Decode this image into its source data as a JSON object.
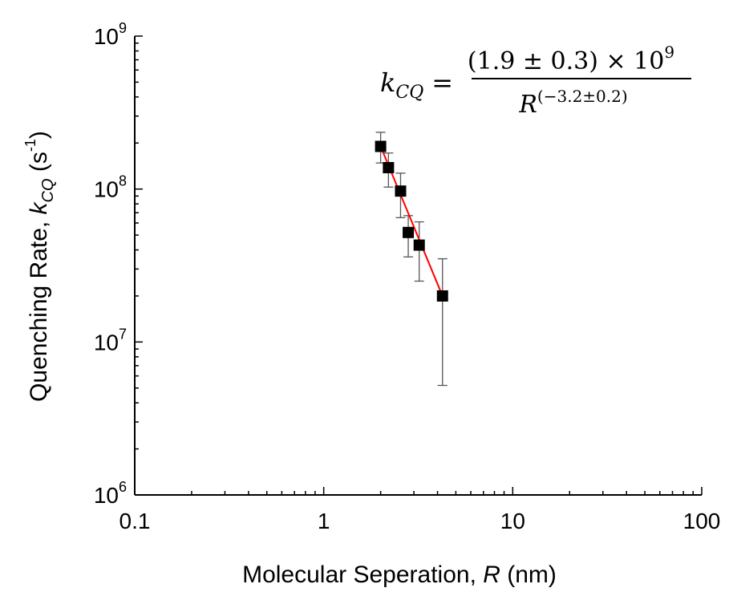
{
  "chart_data": {
    "type": "scatter",
    "xscale": "log",
    "yscale": "log",
    "xlim": [
      0.1,
      100
    ],
    "ylim": [
      1000000,
      1000000000
    ],
    "x_ticks": [
      {
        "value": 0.1,
        "label": "0.1"
      },
      {
        "value": 1,
        "label": "1"
      },
      {
        "value": 10,
        "label": "10"
      },
      {
        "value": 100,
        "label": "100"
      }
    ],
    "y_ticks": [
      {
        "value": 1000000,
        "base": "10",
        "exp": "6"
      },
      {
        "value": 10000000,
        "base": "10",
        "exp": "7"
      },
      {
        "value": 100000000,
        "base": "10",
        "exp": "8"
      },
      {
        "value": 1000000000,
        "base": "10",
        "exp": "9"
      }
    ],
    "xlabel": {
      "main": "Molecular Seperation, ",
      "var": "R",
      "unit": " (nm)"
    },
    "ylabel": {
      "main": "Quenching Rate, ",
      "var": "k",
      "sub": "CQ",
      "unit_open": " (s",
      "unit_sup": "-1",
      "unit_close": ")"
    },
    "grid": false,
    "points": [
      {
        "x": 2.0,
        "y": 190000000,
        "err_low": 148000000,
        "err_high": 235000000
      },
      {
        "x": 2.2,
        "y": 138000000,
        "err_low": 103000000,
        "err_high": 172000000
      },
      {
        "x": 2.55,
        "y": 97000000,
        "err_low": 65000000,
        "err_high": 127000000
      },
      {
        "x": 2.8,
        "y": 52000000,
        "err_low": 36000000,
        "err_high": 67000000
      },
      {
        "x": 3.2,
        "y": 43000000,
        "err_low": 25000000,
        "err_high": 61000000
      },
      {
        "x": 4.25,
        "y": 20000000,
        "err_low": 5200000,
        "err_high": 35000000
      }
    ],
    "fit": {
      "x_start": 2.0,
      "x_end": 4.25,
      "y_start": 190000000,
      "y_end": 20000000,
      "color": "#ff0000"
    },
    "marker_color": "#000000",
    "errorbar_color": "#555555",
    "annotation": {
      "lhs_var": "k",
      "lhs_sub": "CQ",
      "equals": "=",
      "numerator": "(1.9 ± 0.3) × 10",
      "numerator_sup": "9",
      "denominator": "R",
      "denominator_sup": "(−3.2±0.2)"
    }
  }
}
